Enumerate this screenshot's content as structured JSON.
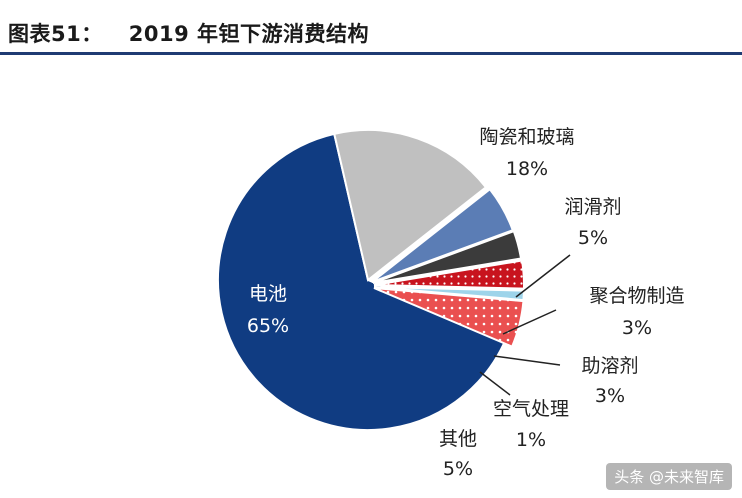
{
  "header": {
    "figure_no": "图表51：",
    "title": "2019 年钽下游消费结构"
  },
  "chart_data": {
    "type": "pie",
    "title": "2019 年钽下游消费结构",
    "slices": [
      {
        "name": "电池",
        "value": 65,
        "label": "65%",
        "color": "#103c82"
      },
      {
        "name": "陶瓷和玻璃",
        "value": 18,
        "label": "18%",
        "color": "#c0c0c0"
      },
      {
        "name": "润滑剂",
        "value": 5,
        "label": "5%",
        "color": "#5b7db5"
      },
      {
        "name": "聚合物制造",
        "value": 3,
        "label": "3%",
        "color": "#3b3b3b"
      },
      {
        "name": "助溶剂",
        "value": 3,
        "label": "3%",
        "color": "#c8141e"
      },
      {
        "name": "空气处理",
        "value": 1,
        "label": "1%",
        "color": "#9ed4ea"
      },
      {
        "name": "其他",
        "value": 5,
        "label": "5%",
        "color": "#ea5050"
      }
    ],
    "legend": "none"
  },
  "watermark": "头条 @未来智库"
}
